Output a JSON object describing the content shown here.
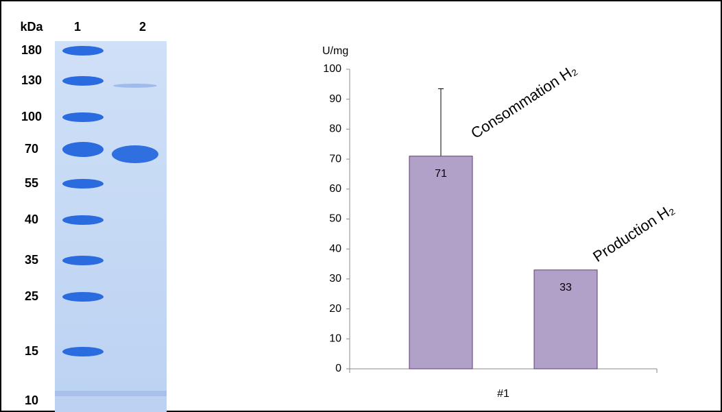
{
  "gel": {
    "unit": "kDa",
    "lanes": [
      "1",
      "2"
    ],
    "markers": [
      "180",
      "130",
      "100",
      "70",
      "55",
      "40",
      "35",
      "25",
      "15",
      "10"
    ]
  },
  "chart_data": {
    "type": "bar",
    "y_label": "U/mg",
    "categories": [
      "#1"
    ],
    "series": [
      {
        "name": "Consommation H₂",
        "color": "#b1a0c7",
        "values": [
          71
        ],
        "errors": [
          22.5
        ]
      },
      {
        "name": "Production H₂",
        "color": "#b1a0c7",
        "values": [
          33
        ]
      }
    ],
    "ylim": [
      0,
      100
    ],
    "yticks": [
      0,
      10,
      20,
      30,
      40,
      50,
      60,
      70,
      80,
      90,
      100
    ],
    "grid": false
  }
}
